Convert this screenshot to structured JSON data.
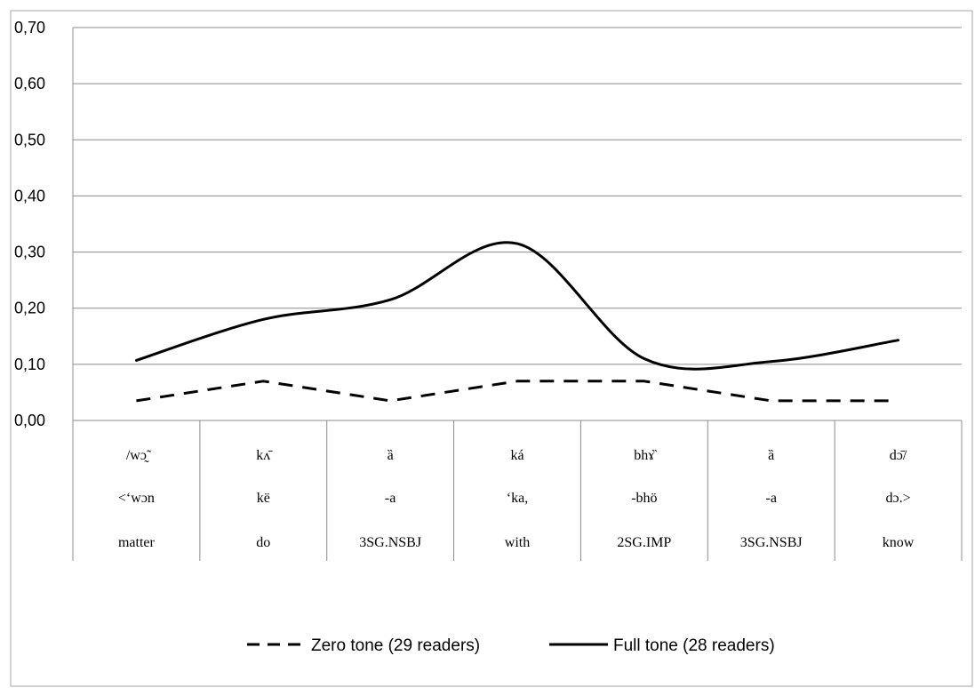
{
  "chart_data": {
    "type": "line",
    "title": "",
    "xlabel": "",
    "ylabel": "",
    "ylim": [
      0,
      0.7
    ],
    "yticks": [
      "0,00",
      "0,10",
      "0,20",
      "0,30",
      "0,40",
      "0,50",
      "0,60",
      "0,70"
    ],
    "grid": true,
    "legend_position": "bottom",
    "categories": [
      [
        "/wɔ̰̃",
        "<‘wɔn",
        "matter"
      ],
      [
        "kʌ̄",
        "kë",
        "do"
      ],
      [
        "ȁ",
        "-a",
        "3SG.NSBJ"
      ],
      [
        "ká",
        "‘ka,",
        "with"
      ],
      [
        "bhɤ̏",
        "-bhö",
        "2SG.IMP"
      ],
      [
        "ȁ",
        "-a",
        "3SG.NSBJ"
      ],
      [
        "dɔ̄/",
        "dɔ.>",
        "know"
      ]
    ],
    "series": [
      {
        "name": "Zero tone (29 readers)",
        "style": "dashed",
        "color": "#000000",
        "values": [
          0.035,
          0.07,
          0.035,
          0.07,
          0.07,
          0.035,
          0.035
        ]
      },
      {
        "name": "Full tone (28 readers)",
        "style": "solid",
        "color": "#000000",
        "values": [
          0.107,
          0.18,
          0.215,
          0.315,
          0.11,
          0.105,
          0.143
        ]
      }
    ]
  }
}
